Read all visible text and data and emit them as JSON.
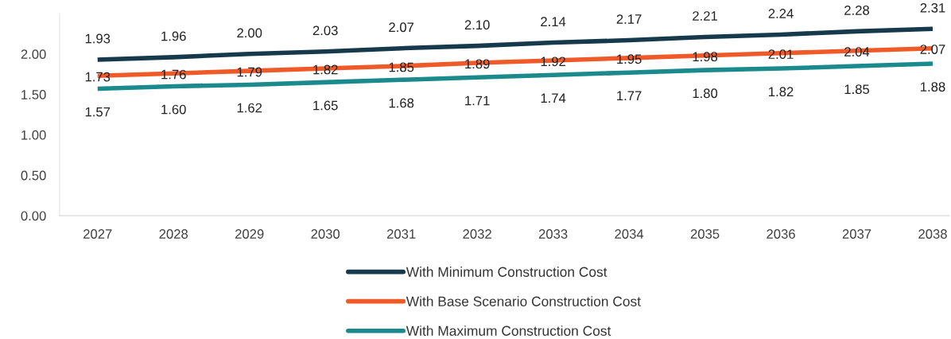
{
  "chart_data": {
    "type": "line",
    "categories": [
      "2027",
      "2028",
      "2029",
      "2030",
      "2031",
      "2032",
      "2033",
      "2034",
      "2035",
      "2036",
      "2037",
      "2038"
    ],
    "series": [
      {
        "name": "With Minimum Construction Cost",
        "color": "#163a4b",
        "values": [
          1.93,
          1.96,
          2.0,
          2.03,
          2.07,
          2.1,
          2.14,
          2.17,
          2.21,
          2.24,
          2.28,
          2.31
        ],
        "value_labels": [
          "1.93",
          "1.96",
          "2.00",
          "2.03",
          "2.07",
          "2.10",
          "2.14",
          "2.17",
          "2.21",
          "2.24",
          "2.28",
          "2.31"
        ]
      },
      {
        "name": "With Base Scenario Construction Cost",
        "color": "#f05a28",
        "values": [
          1.73,
          1.76,
          1.79,
          1.82,
          1.85,
          1.89,
          1.92,
          1.95,
          1.98,
          2.01,
          2.04,
          2.07
        ],
        "value_labels": [
          "1.73",
          "1.76",
          "1.79",
          "1.82",
          "1.85",
          "1.89",
          "1.92",
          "1.95",
          "1.98",
          "2.01",
          "2.04",
          "2.07"
        ]
      },
      {
        "name": "With Maximum Construction Cost",
        "color": "#1b8a8c",
        "values": [
          1.57,
          1.6,
          1.62,
          1.65,
          1.68,
          1.71,
          1.74,
          1.77,
          1.8,
          1.82,
          1.85,
          1.88
        ],
        "value_labels": [
          "1.57",
          "1.60",
          "1.62",
          "1.65",
          "1.68",
          "1.71",
          "1.74",
          "1.77",
          "1.80",
          "1.82",
          "1.85",
          "1.88"
        ]
      }
    ],
    "ylim": [
      0,
      2.5
    ],
    "yticks": [
      {
        "value": 0,
        "label": "0.00"
      },
      {
        "value": 0.5,
        "label": "0.50"
      },
      {
        "value": 1,
        "label": "1.00"
      },
      {
        "value": 1.5,
        "label": "1.50"
      },
      {
        "value": 2,
        "label": "2.00"
      }
    ],
    "legend": "bottom",
    "grid": false,
    "marker": "none",
    "line_style": "solid"
  }
}
